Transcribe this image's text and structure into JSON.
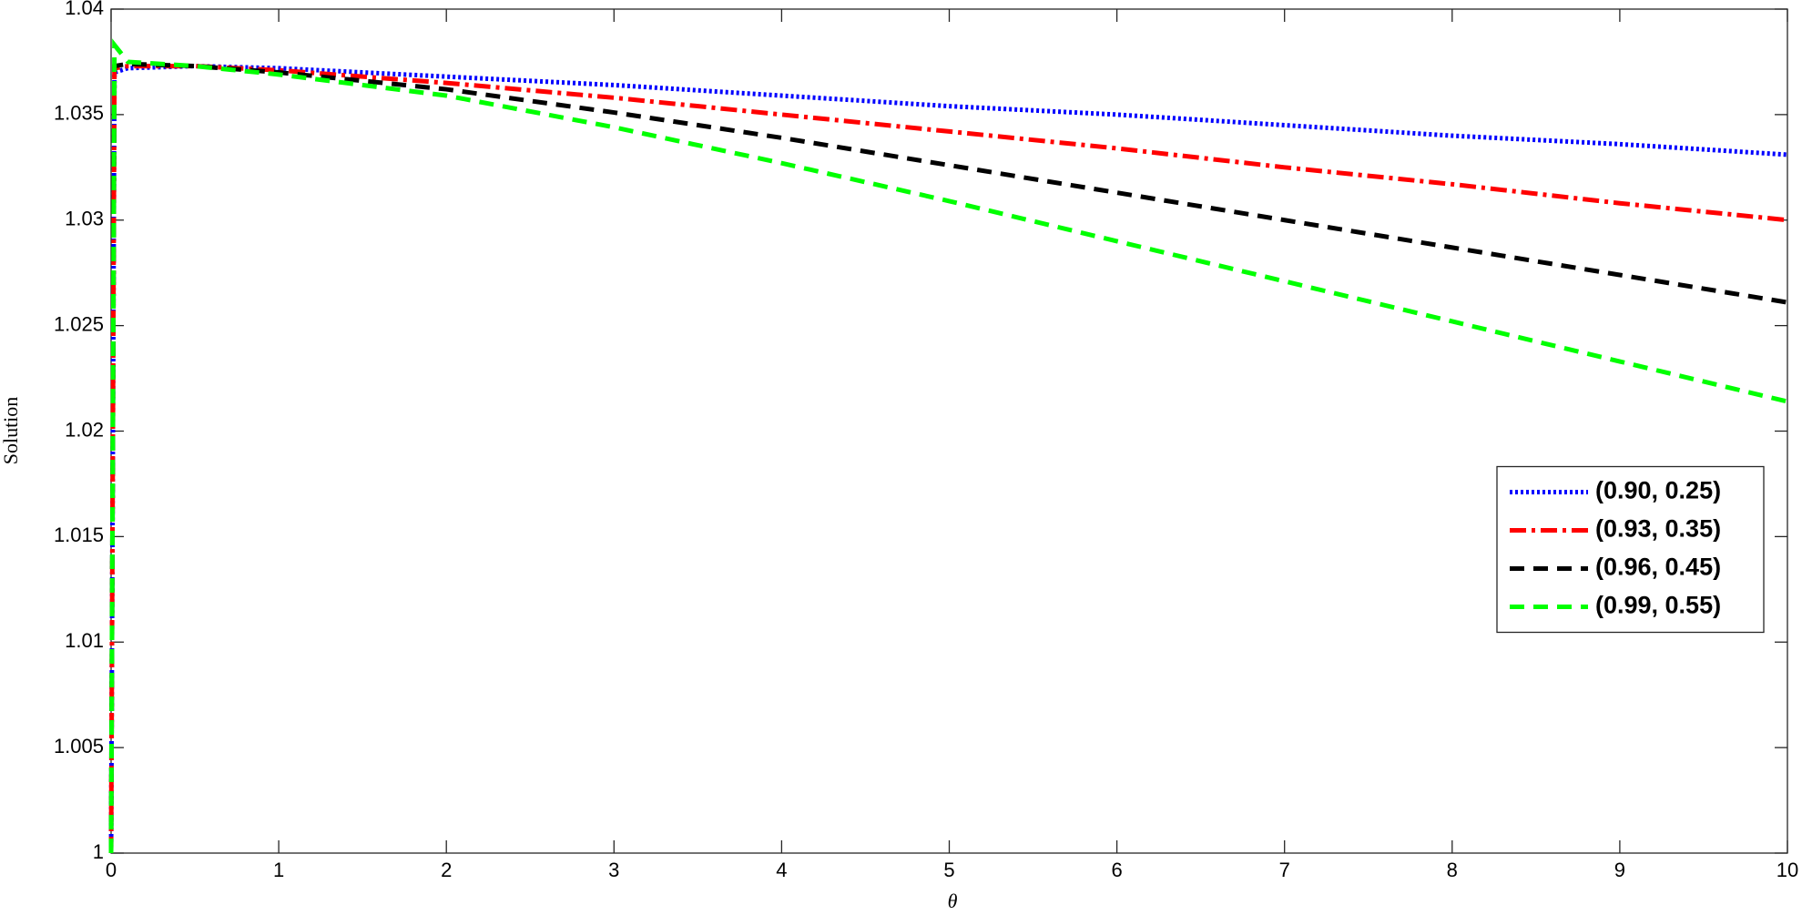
{
  "chart_data": {
    "type": "line",
    "x_label": "θ",
    "y_label": "Solution",
    "x": [
      0,
      0.02,
      0.1,
      0.5,
      1,
      2,
      3,
      4,
      5,
      6,
      7,
      8,
      9,
      10
    ],
    "series": [
      {
        "name": "(0.90, 0.25)",
        "color": "#0000ff",
        "style": "dotted",
        "values": [
          1,
          1.037,
          1.0372,
          1.0373,
          1.0372,
          1.0368,
          1.0364,
          1.0359,
          1.0354,
          1.035,
          1.0345,
          1.034,
          1.0336,
          1.0331
        ]
      },
      {
        "name": "(0.93, 0.35)",
        "color": "#ff0000",
        "style": "dashdot",
        "values": [
          1,
          1.0372,
          1.0373,
          1.0373,
          1.0371,
          1.0365,
          1.0358,
          1.035,
          1.0342,
          1.0334,
          1.0325,
          1.0317,
          1.0308,
          1.03
        ]
      },
      {
        "name": "(0.96, 0.45)",
        "color": "#000000",
        "style": "dashed",
        "values": [
          1,
          1.0373,
          1.0374,
          1.0373,
          1.037,
          1.0362,
          1.0351,
          1.0339,
          1.0326,
          1.0313,
          1.03,
          1.0287,
          1.0274,
          1.0261
        ]
      },
      {
        "name": "(0.99, 0.55)",
        "color": "#00ff00",
        "style": "dashed",
        "values": [
          1,
          1.0383,
          1.0375,
          1.0373,
          1.0369,
          1.0359,
          1.0344,
          1.0327,
          1.0309,
          1.029,
          1.0271,
          1.0252,
          1.0233,
          1.0214
        ]
      }
    ],
    "xlim": [
      0,
      10
    ],
    "xticks": [
      0,
      1,
      2,
      3,
      4,
      5,
      6,
      7,
      8,
      9,
      10
    ],
    "ylim": [
      1,
      1.04
    ],
    "yticks": [
      1,
      1.005,
      1.01,
      1.015,
      1.02,
      1.025,
      1.03,
      1.035,
      1.04
    ],
    "grid": false,
    "legend": "east"
  }
}
